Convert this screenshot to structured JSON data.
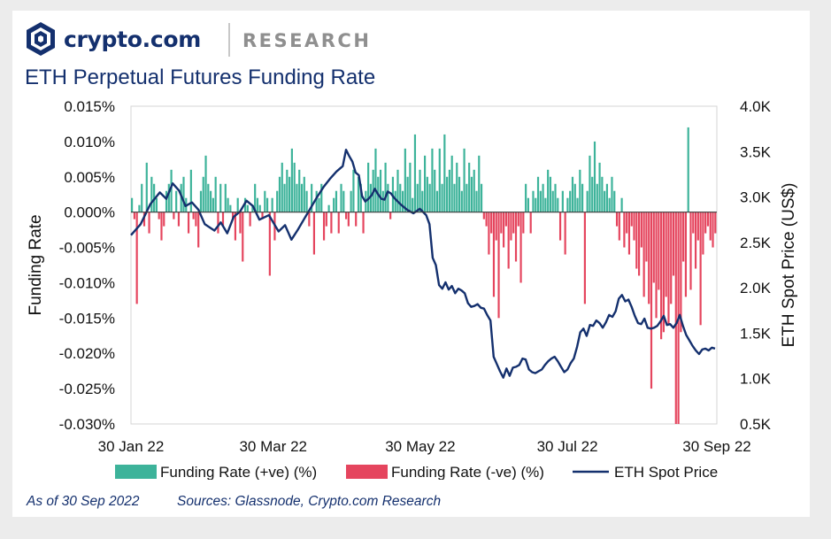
{
  "header": {
    "brand": "crypto.com",
    "section": "RESEARCH",
    "title": "ETH Perpetual Futures Funding Rate"
  },
  "footer": {
    "as_of": "As of 30 Sep 2022",
    "sources": "Sources: Glassnode, Crypto.com Research"
  },
  "colors": {
    "positive": "#3db39a",
    "negative": "#e5455e",
    "price": "#14306e",
    "brand": "#14306e"
  },
  "chart_data": {
    "type": "bar",
    "ylabel": "Funding Rate",
    "y2label": "ETH Spot Price (US$)",
    "ylim": [
      -0.03,
      0.015
    ],
    "y2lim": [
      500,
      4000
    ],
    "yticks": [
      "0.015%",
      "0.010%",
      "0.005%",
      "0.000%",
      "-0.005%",
      "-0.010%",
      "-0.015%",
      "-0.020%",
      "-0.025%",
      "-0.030%"
    ],
    "y2ticks": [
      "4.0K",
      "3.5K",
      "3.0K",
      "2.5K",
      "2.0K",
      "1.5K",
      "1.0K",
      "0.5K"
    ],
    "xticks": [
      "30 Jan 22",
      "30 Mar 22",
      "30 May 22",
      "30 Jul 22",
      "30 Sep 22"
    ],
    "xrange": [
      "2022-01-30",
      "2022-09-30"
    ],
    "legend": {
      "position": "bottom",
      "positive": "Funding Rate (+ve) (%)",
      "negative": "Funding Rate (-ve) (%)",
      "price": "ETH Spot Price"
    },
    "funding_rate": [
      0.002,
      -0.001,
      -0.013,
      0.001,
      0.004,
      -0.002,
      0.007,
      -0.003,
      0.005,
      0.004,
      0.002,
      -0.001,
      -0.004,
      -0.002,
      0.003,
      0.004,
      0.006,
      -0.001,
      0.003,
      -0.002,
      0.004,
      0.005,
      0.002,
      -0.003,
      0.006,
      -0.001,
      -0.002,
      -0.005,
      0.003,
      0.005,
      0.008,
      0.004,
      0.003,
      0.002,
      0.005,
      -0.003,
      0.004,
      -0.002,
      0.004,
      0.002,
      0.001,
      -0.001,
      -0.004,
      0.002,
      -0.003,
      -0.007,
      0.002,
      0.001,
      -0.002,
      0.001,
      0.004,
      0.002,
      0.001,
      -0.001,
      0.003,
      0.002,
      -0.009,
      0.002,
      -0.004,
      0.003,
      0.005,
      0.007,
      0.004,
      0.006,
      0.005,
      0.009,
      0.007,
      0.004,
      0.006,
      0.004,
      0.005,
      0.003,
      -0.002,
      0.004,
      -0.006,
      0.003,
      0.002,
      0.004,
      -0.004,
      -0.002,
      0.001,
      -0.003,
      0.002,
      0.003,
      -0.003,
      0.004,
      0.003,
      -0.001,
      -0.002,
      0.003,
      0.006,
      -0.002,
      0.005,
      0.004,
      -0.003,
      0.003,
      0.007,
      0.004,
      0.006,
      0.009,
      0.005,
      0.006,
      0.003,
      0.007,
      0.004,
      -0.001,
      0.005,
      0.003,
      0.006,
      0.004,
      0.003,
      0.009,
      0.005,
      0.007,
      0.002,
      0.011,
      0.004,
      0.006,
      0.003,
      0.008,
      0.005,
      0.004,
      0.009,
      0.006,
      0.003,
      0.009,
      0.004,
      0.011,
      0.005,
      0.006,
      0.008,
      0.004,
      0.007,
      0.005,
      0.003,
      0.009,
      0.004,
      0.007,
      0.005,
      0.006,
      0.003,
      0.008,
      0.004,
      -0.001,
      -0.002,
      -0.006,
      -0.003,
      -0.012,
      -0.004,
      -0.015,
      -0.003,
      -0.005,
      -0.002,
      -0.008,
      -0.004,
      -0.003,
      -0.007,
      -0.002,
      -0.01,
      -0.003,
      0.004,
      0.002,
      -0.003,
      0.003,
      0.002,
      0.005,
      0.003,
      0.004,
      0.002,
      0.006,
      0.005,
      0.003,
      0.004,
      0.002,
      -0.004,
      0.003,
      -0.006,
      0.002,
      0.003,
      0.005,
      0.004,
      0.002,
      0.006,
      0.004,
      -0.013,
      0.003,
      0.008,
      0.005,
      0.01,
      0.004,
      0.007,
      0.005,
      0.003,
      0.004,
      0.002,
      0.005,
      0.003,
      -0.002,
      -0.004,
      0.002,
      -0.005,
      -0.003,
      -0.006,
      -0.002,
      -0.004,
      -0.008,
      -0.009,
      -0.005,
      -0.012,
      -0.007,
      -0.013,
      -0.025,
      -0.01,
      -0.015,
      -0.011,
      -0.018,
      -0.017,
      -0.012,
      -0.016,
      -0.013,
      -0.009,
      -0.03,
      -0.03,
      -0.017,
      -0.007,
      -0.012,
      0.012,
      -0.011,
      -0.003,
      -0.008,
      -0.004,
      -0.016,
      -0.006,
      -0.003,
      -0.002,
      -0.004,
      -0.005,
      -0.003
    ],
    "eth_price": [
      [
        0,
        2580
      ],
      [
        3,
        2700
      ],
      [
        6,
        2920
      ],
      [
        9,
        3050
      ],
      [
        11,
        2980
      ],
      [
        13,
        3150
      ],
      [
        15,
        3070
      ],
      [
        17,
        2900
      ],
      [
        19,
        2940
      ],
      [
        21,
        2860
      ],
      [
        23,
        2700
      ],
      [
        26,
        2630
      ],
      [
        28,
        2720
      ],
      [
        30,
        2600
      ],
      [
        32,
        2780
      ],
      [
        34,
        2840
      ],
      [
        36,
        2960
      ],
      [
        38,
        2900
      ],
      [
        40,
        2750
      ],
      [
        43,
        2800
      ],
      [
        46,
        2620
      ],
      [
        48,
        2690
      ],
      [
        50,
        2530
      ],
      [
        52,
        2640
      ],
      [
        54,
        2760
      ],
      [
        56,
        2880
      ],
      [
        58,
        3000
      ],
      [
        60,
        3110
      ],
      [
        62,
        3200
      ],
      [
        64,
        3280
      ],
      [
        66,
        3340
      ],
      [
        67,
        3520
      ],
      [
        68,
        3450
      ],
      [
        69,
        3390
      ],
      [
        70,
        3270
      ],
      [
        71,
        3240
      ],
      [
        72,
        3010
      ],
      [
        73,
        2950
      ],
      [
        74,
        2980
      ],
      [
        75,
        3020
      ],
      [
        76,
        3090
      ],
      [
        77,
        3030
      ],
      [
        78,
        2980
      ],
      [
        79,
        2970
      ],
      [
        80,
        3060
      ],
      [
        81,
        3040
      ],
      [
        82,
        2990
      ],
      [
        84,
        2920
      ],
      [
        86,
        2860
      ],
      [
        88,
        2820
      ],
      [
        90,
        2870
      ],
      [
        92,
        2800
      ],
      [
        93,
        2700
      ],
      [
        94,
        2330
      ],
      [
        95,
        2250
      ],
      [
        96,
        2030
      ],
      [
        97,
        1990
      ],
      [
        98,
        2060
      ],
      [
        99,
        1980
      ],
      [
        100,
        2020
      ],
      [
        101,
        1940
      ],
      [
        102,
        1990
      ],
      [
        103,
        1970
      ],
      [
        104,
        1940
      ],
      [
        105,
        1830
      ],
      [
        106,
        1790
      ],
      [
        107,
        1800
      ],
      [
        108,
        1820
      ],
      [
        109,
        1780
      ],
      [
        110,
        1770
      ],
      [
        111,
        1700
      ],
      [
        112,
        1640
      ],
      [
        113,
        1240
      ],
      [
        114,
        1160
      ],
      [
        115,
        1080
      ],
      [
        116,
        1010
      ],
      [
        117,
        1110
      ],
      [
        118,
        1030
      ],
      [
        119,
        1120
      ],
      [
        120,
        1130
      ],
      [
        121,
        1150
      ],
      [
        122,
        1220
      ],
      [
        123,
        1210
      ],
      [
        124,
        1100
      ],
      [
        125,
        1070
      ],
      [
        126,
        1060
      ],
      [
        127,
        1080
      ],
      [
        128,
        1100
      ],
      [
        129,
        1150
      ],
      [
        130,
        1190
      ],
      [
        131,
        1220
      ],
      [
        132,
        1240
      ],
      [
        133,
        1190
      ],
      [
        134,
        1130
      ],
      [
        135,
        1070
      ],
      [
        136,
        1100
      ],
      [
        137,
        1170
      ],
      [
        138,
        1220
      ],
      [
        139,
        1350
      ],
      [
        140,
        1510
      ],
      [
        141,
        1550
      ],
      [
        142,
        1470
      ],
      [
        143,
        1590
      ],
      [
        144,
        1580
      ],
      [
        145,
        1640
      ],
      [
        146,
        1610
      ],
      [
        147,
        1560
      ],
      [
        148,
        1620
      ],
      [
        149,
        1700
      ],
      [
        150,
        1680
      ],
      [
        151,
        1740
      ],
      [
        152,
        1880
      ],
      [
        153,
        1920
      ],
      [
        154,
        1850
      ],
      [
        155,
        1870
      ],
      [
        156,
        1790
      ],
      [
        157,
        1690
      ],
      [
        158,
        1610
      ],
      [
        159,
        1600
      ],
      [
        160,
        1660
      ],
      [
        161,
        1560
      ],
      [
        162,
        1550
      ],
      [
        163,
        1560
      ],
      [
        164,
        1580
      ],
      [
        165,
        1630
      ],
      [
        166,
        1690
      ],
      [
        167,
        1590
      ],
      [
        168,
        1600
      ],
      [
        169,
        1560
      ],
      [
        170,
        1610
      ],
      [
        171,
        1700
      ],
      [
        172,
        1580
      ],
      [
        173,
        1480
      ],
      [
        174,
        1420
      ],
      [
        175,
        1360
      ],
      [
        176,
        1310
      ],
      [
        177,
        1270
      ],
      [
        178,
        1320
      ],
      [
        179,
        1330
      ],
      [
        180,
        1310
      ],
      [
        181,
        1340
      ],
      [
        182,
        1330
      ]
    ]
  }
}
